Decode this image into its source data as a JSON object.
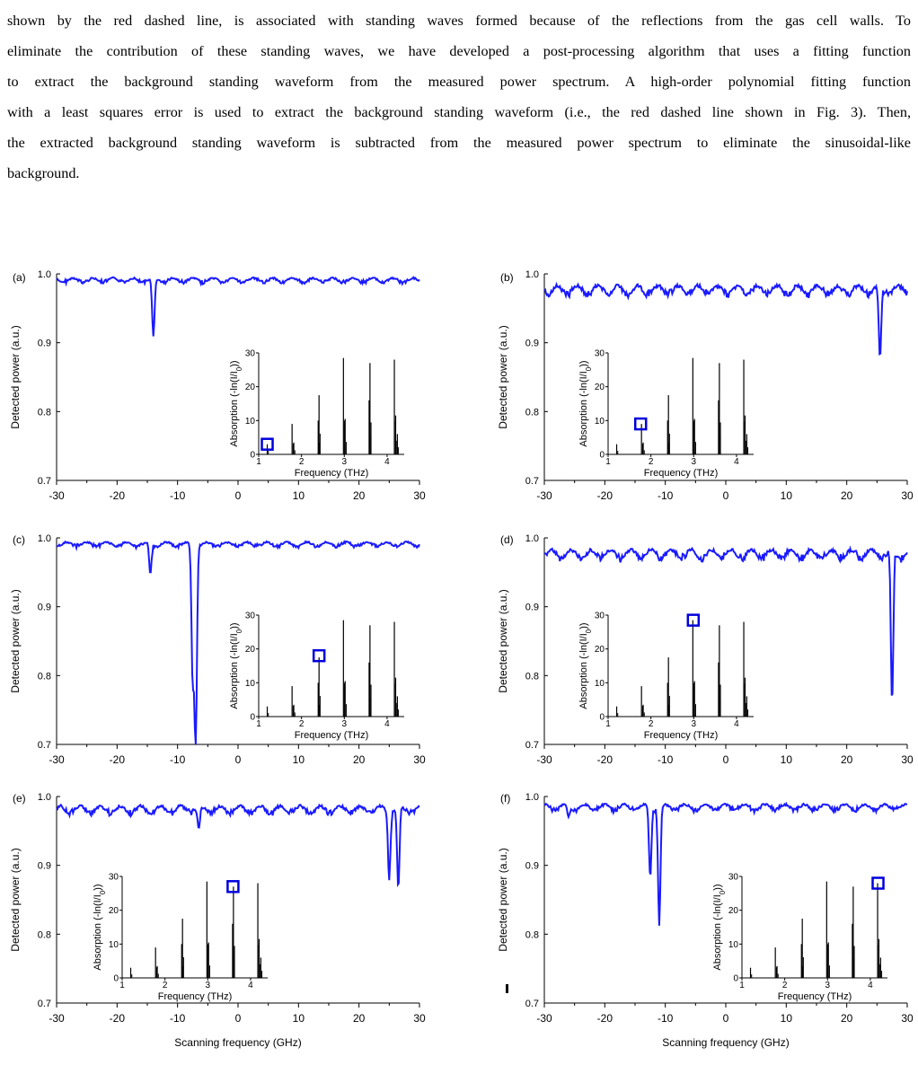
{
  "paragraph": {
    "lines": [
      "shown by the red dashed line, is associated with standing waves formed because of the reflections from the gas cell walls. To",
      "eliminate the contribution of these standing waves, we have developed a post-processing algorithm that uses a fitting function",
      "to extract the background standing waveform from the measured power spectrum. A high-order polynomial fitting function",
      "with a least squares error is used to extract the background standing waveform (i.e., the red dashed line shown in Fig. 3). Then,",
      "the extracted background standing waveform is subtracted from the measured power spectrum to eliminate the sinusoidal-like",
      "background."
    ]
  },
  "colors": {
    "trace": "#1a1aff",
    "stick": "#000000",
    "highlight": "#0000dd"
  },
  "chart_data": [
    {
      "type": "line",
      "panel_label": "(a)",
      "xlabel": "",
      "ylabel": "Detected power (a.u.)",
      "xlim": [
        -30,
        30
      ],
      "ylim": [
        0.7,
        1.0
      ],
      "xticks": [
        "-30",
        "-20",
        "-10",
        "0",
        "10",
        "20",
        "30"
      ],
      "yticks": [
        "0.7",
        "0.8",
        "0.9",
        "1.0"
      ],
      "baseline": 0.995,
      "ripple": 0.006,
      "dips": [
        {
          "x": -14,
          "y": 0.91
        }
      ],
      "inset": {
        "xlabel": "Frequency (THz)",
        "ylabel": "Absorption (-ln(I/I0))",
        "xticks": [
          "1",
          "2",
          "3",
          "4"
        ],
        "yticks": [
          "0",
          "10",
          "20",
          "30"
        ],
        "xlim": [
          1,
          4.4
        ],
        "ylim": [
          0,
          30
        ],
        "highlight_x": 1.2,
        "highlight_y": 3
      }
    },
    {
      "type": "line",
      "panel_label": "(b)",
      "xlabel": "",
      "ylabel": "Detected power (a.u.)",
      "xlim": [
        -30,
        30
      ],
      "ylim": [
        0.7,
        1.0
      ],
      "xticks": [
        "-30",
        "-20",
        "-10",
        "0",
        "10",
        "20",
        "30"
      ],
      "yticks": [
        "0.7",
        "0.8",
        "0.9",
        "1.0"
      ],
      "baseline": 0.985,
      "ripple": 0.012,
      "dips": [
        {
          "x": 25.5,
          "y": 0.88
        }
      ],
      "inset": {
        "xlabel": "Frequency (THz)",
        "ylabel": "Absorption (-ln(I/I0))",
        "xticks": [
          "1",
          "2",
          "3",
          "4"
        ],
        "yticks": [
          "0",
          "10",
          "20",
          "30"
        ],
        "xlim": [
          1,
          4.4
        ],
        "ylim": [
          0,
          30
        ],
        "highlight_x": 1.76,
        "highlight_y": 9
      }
    },
    {
      "type": "line",
      "panel_label": "(c)",
      "xlabel": "",
      "ylabel": "Detected power (a.u.)",
      "xlim": [
        -30,
        30
      ],
      "ylim": [
        0.7,
        1.0
      ],
      "xticks": [
        "-30",
        "-20",
        "-10",
        "0",
        "10",
        "20",
        "30"
      ],
      "yticks": [
        "0.7",
        "0.8",
        "0.9",
        "1.0"
      ],
      "baseline": 0.995,
      "ripple": 0.006,
      "dips": [
        {
          "x": -14.5,
          "y": 0.95
        },
        {
          "x": -7.5,
          "y": 0.8
        },
        {
          "x": -7,
          "y": 0.7
        }
      ],
      "inset": {
        "xlabel": "Frequency (THz)",
        "ylabel": "Absorption (-ln(I/I0))",
        "xticks": [
          "1",
          "2",
          "3",
          "4"
        ],
        "yticks": [
          "0",
          "10",
          "20",
          "30"
        ],
        "xlim": [
          1,
          4.4
        ],
        "ylim": [
          0,
          30
        ],
        "highlight_x": 2.41,
        "highlight_y": 18
      }
    },
    {
      "type": "line",
      "panel_label": "(d)",
      "xlabel": "",
      "ylabel": "Detected power (a.u.)",
      "xlim": [
        -30,
        30
      ],
      "ylim": [
        0.7,
        1.0
      ],
      "xticks": [
        "-30",
        "-20",
        "-10",
        "0",
        "10",
        "20",
        "30"
      ],
      "yticks": [
        "0.7",
        "0.8",
        "0.9",
        "1.0"
      ],
      "baseline": 0.985,
      "ripple": 0.012,
      "dips": [
        {
          "x": 27.5,
          "y": 0.76
        }
      ],
      "inset": {
        "xlabel": "Frequency (THz)",
        "ylabel": "Absorption (-ln(I/I0))",
        "xticks": [
          "1",
          "2",
          "3",
          "4"
        ],
        "yticks": [
          "0",
          "10",
          "20",
          "30"
        ],
        "xlim": [
          1,
          4.4
        ],
        "ylim": [
          0,
          30
        ],
        "highlight_x": 2.99,
        "highlight_y": 28.5
      }
    },
    {
      "type": "line",
      "panel_label": "(e)",
      "xlabel": "Scanning frequency (GHz)",
      "ylabel": "Detected power (a.u.)",
      "xlim": [
        -30,
        30
      ],
      "ylim": [
        0.7,
        1.0
      ],
      "xticks": [
        "-30",
        "-20",
        "-10",
        "0",
        "10",
        "20",
        "30"
      ],
      "yticks": [
        "0.7",
        "0.8",
        "0.9",
        "1.0"
      ],
      "baseline": 0.988,
      "ripple": 0.01,
      "dips": [
        {
          "x": -6.5,
          "y": 0.955
        },
        {
          "x": 25,
          "y": 0.89
        },
        {
          "x": 26.5,
          "y": 0.87
        }
      ],
      "inset": {
        "xlabel": "Frequency (THz)",
        "ylabel": "Absorption (-ln(I/I0))",
        "xticks": [
          "1",
          "2",
          "3",
          "4"
        ],
        "yticks": [
          "0",
          "10",
          "20",
          "30"
        ],
        "xlim": [
          1,
          4.4
        ],
        "ylim": [
          0,
          30
        ],
        "highlight_x": 3.59,
        "highlight_y": 27
      }
    },
    {
      "type": "line",
      "panel_label": "(f)",
      "xlabel": "Scanning frequency (GHz)",
      "ylabel": "Detected power (a.u.)",
      "xlim": [
        -30,
        30
      ],
      "ylim": [
        0.7,
        1.0
      ],
      "xticks": [
        "-30",
        "-20",
        "-10",
        "0",
        "10",
        "20",
        "30"
      ],
      "yticks": [
        "0.7",
        "0.8",
        "0.9",
        "1.0"
      ],
      "baseline": 0.99,
      "ripple": 0.008,
      "dips": [
        {
          "x": -12.5,
          "y": 0.89
        },
        {
          "x": -11,
          "y": 0.82
        },
        {
          "x": -26,
          "y": 0.975
        }
      ],
      "inset": {
        "xlabel": "Frequency (THz)",
        "ylabel": "Absorption (-ln(I/I0))",
        "xticks": [
          "1",
          "2",
          "3",
          "4"
        ],
        "yticks": [
          "0",
          "10",
          "20",
          "30"
        ],
        "xlim": [
          1,
          4.4
        ],
        "ylim": [
          0,
          30
        ],
        "highlight_x": 4.18,
        "highlight_y": 28
      }
    }
  ],
  "absorption_spectrum": {
    "lines": [
      {
        "f": 1.2,
        "a": 3
      },
      {
        "f": 1.78,
        "a": 9
      },
      {
        "f": 1.82,
        "a": 3.5
      },
      {
        "f": 2.39,
        "a": 10
      },
      {
        "f": 2.41,
        "a": 17.5
      },
      {
        "f": 2.98,
        "a": 28.5
      },
      {
        "f": 3.02,
        "a": 10.5
      },
      {
        "f": 3.58,
        "a": 16
      },
      {
        "f": 3.6,
        "a": 27
      },
      {
        "f": 4.17,
        "a": 28
      },
      {
        "f": 4.2,
        "a": 11.5
      },
      {
        "f": 4.24,
        "a": 6
      }
    ]
  }
}
